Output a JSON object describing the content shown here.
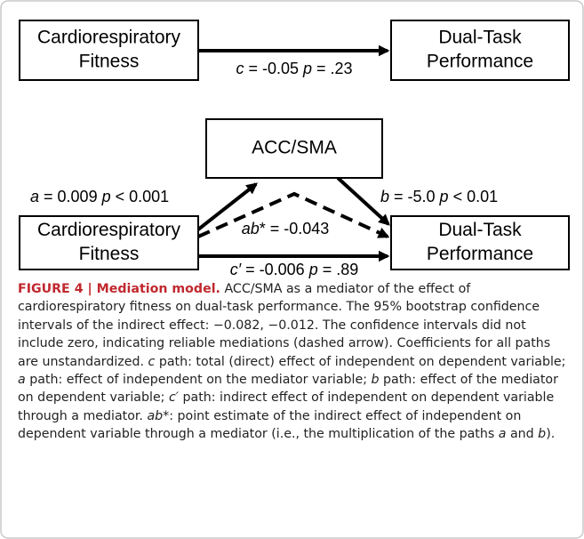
{
  "nodes": [
    {
      "lines": [
        "Cardiorespiratory",
        "Fitness"
      ]
    },
    {
      "lines": [
        "Dual-Task",
        "Performance"
      ]
    },
    {
      "lines": [
        "ACC/SMA"
      ]
    },
    {
      "lines": [
        "Cardiorespiratory",
        "Fitness"
      ]
    },
    {
      "lines": [
        "Dual-Task",
        "Performance"
      ]
    }
  ],
  "edges": [
    {
      "label": [
        {
          "italic": "c"
        },
        " = -0.05 ",
        {
          "italic": "p"
        },
        " = .23"
      ]
    },
    {
      "label": [
        {
          "italic": "a"
        },
        " = 0.009 ",
        {
          "italic": "p"
        },
        " < 0.001"
      ]
    },
    {
      "label": [
        {
          "italic": "b"
        },
        " = -5.0 ",
        {
          "italic": "p"
        },
        " < 0.01"
      ]
    },
    {
      "label": [
        {
          "italic": "ab"
        },
        "* = -0.043"
      ]
    },
    {
      "label": [
        {
          "italic": "c′"
        },
        " = -0.006 ",
        {
          "italic": "p"
        },
        " = .89"
      ]
    }
  ],
  "caption": {
    "runs": [
      {
        "bold": "FIGURE 4 | Mediation model."
      },
      " ACC/SMA as a mediator of the effect of cardiorespiratory fitness on dual-task performance. The 95% bootstrap confidence intervals of the indirect effect: −0.082, −0.012. The confidence intervals did not include zero, indicating reliable mediations (dashed arrow). Coefficients for all paths are unstandardized. ",
      {
        "italic": "c"
      },
      " path: total (direct) effect of independent on dependent variable; ",
      {
        "italic": "a"
      },
      " path: effect of independent on the mediator variable; ",
      {
        "italic": "b"
      },
      " path: effect of the mediator on dependent variable; ",
      {
        "italic": "c′"
      },
      " path: indirect effect of independent on dependent variable through a mediator. ",
      {
        "italic": "ab"
      },
      "*: point estimate of the indirect effect of independent on dependent variable through a mediator (i.e., the multiplication of the paths ",
      {
        "italic": "a"
      },
      " and ",
      {
        "italic": "b"
      },
      ")."
    ]
  }
}
